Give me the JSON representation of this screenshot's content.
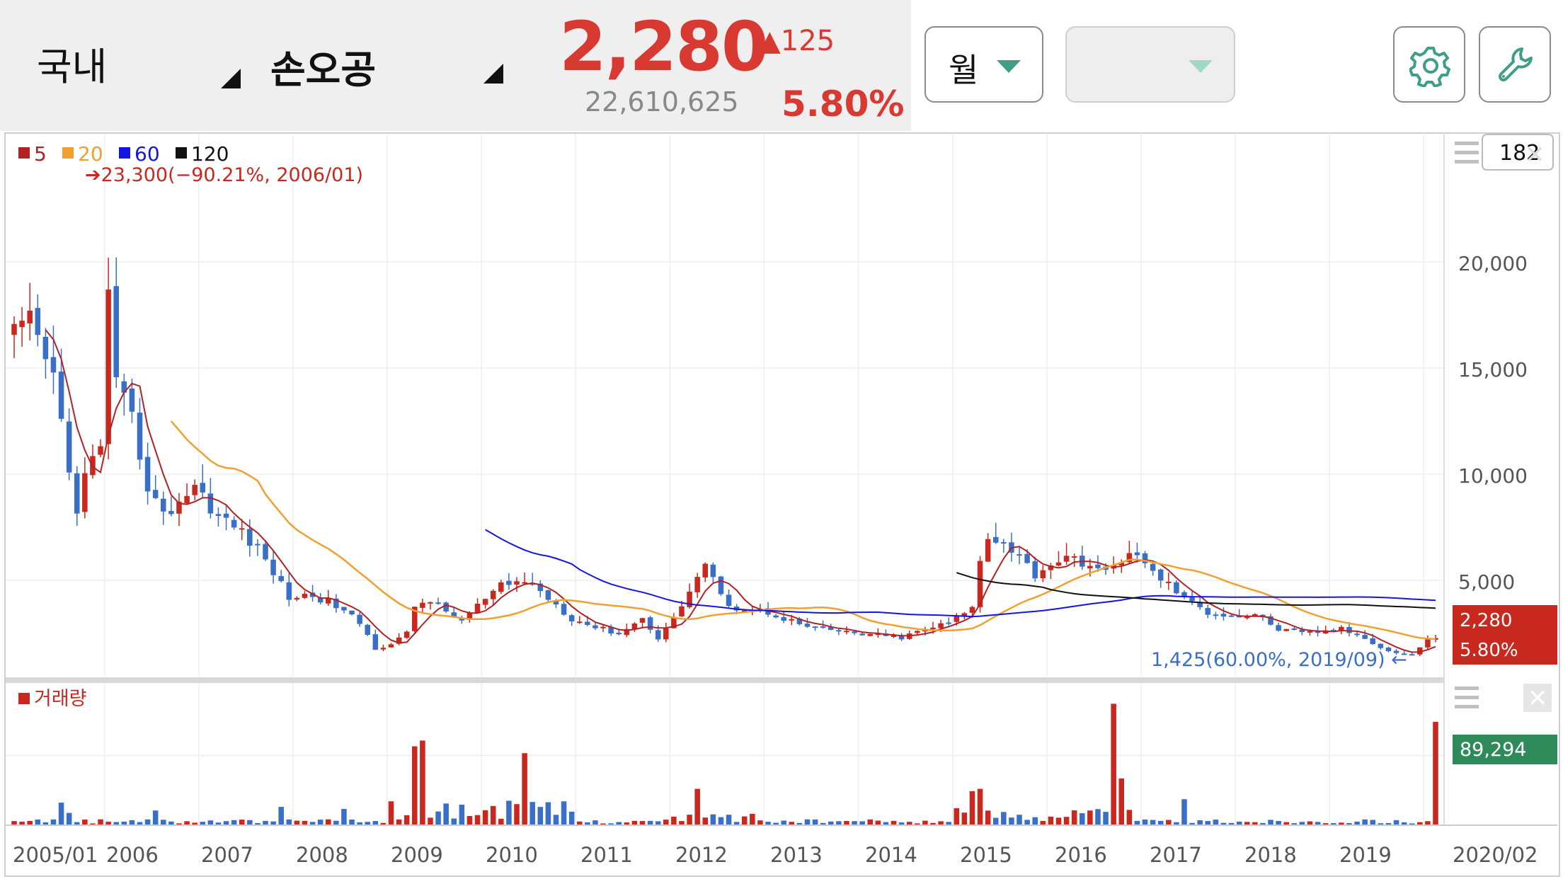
{
  "header": {
    "market_label": "국내",
    "stock_name": "손오공",
    "price": "2,280",
    "change": "▲125",
    "volume_total": "22,610,625",
    "change_pct": "5.80%",
    "period_label": "월",
    "colors": {
      "up": "#d83a32",
      "down": "#3a6fc8",
      "accent": "#3e9e86"
    },
    "icons": [
      "settings-gear-icon",
      "wrench-icon"
    ]
  },
  "chart_data": {
    "type": "candlestick",
    "interval": "monthly",
    "start": "2005/01",
    "end": "2020/02",
    "legend": [
      {
        "label": "5",
        "color": "#b22222"
      },
      {
        "label": "20",
        "color": "#f0a030"
      },
      {
        "label": "60",
        "color": "#1414e6"
      },
      {
        "label": "120",
        "color": "#111111"
      }
    ],
    "range_box_value": "182",
    "x_tick_labels": [
      "2005/01",
      "2006",
      "2007",
      "2008",
      "2009",
      "2010",
      "2011",
      "2012",
      "2013",
      "2014",
      "2015",
      "2016",
      "2017",
      "2018",
      "2019",
      "2020/02"
    ],
    "y_ticks": [
      5000,
      10000,
      15000,
      20000
    ],
    "y_tick_labels": [
      "5,000",
      "10,000",
      "15,000",
      "20,000"
    ],
    "ylim": [
      500,
      26000
    ],
    "grid": true,
    "max_annotation": "➔23,300(−90.21%, 2006/01)",
    "min_annotation": "1,425(60.00%, 2019/09)  ←",
    "last_price_tag": [
      "2,280",
      "5.80%"
    ],
    "close_anchors": [
      [
        "2005-01",
        16500
      ],
      [
        "2005-03",
        17000
      ],
      [
        "2005-06",
        14500
      ],
      [
        "2005-08",
        10500
      ],
      [
        "2005-09",
        8000
      ],
      [
        "2005-10",
        9800
      ],
      [
        "2005-12",
        11500
      ],
      [
        "2006-01",
        18300
      ],
      [
        "2006-02",
        14000
      ],
      [
        "2006-04",
        12500
      ],
      [
        "2006-06",
        9500
      ],
      [
        "2006-08",
        8000
      ],
      [
        "2006-12",
        9500
      ],
      [
        "2007-03",
        8000
      ],
      [
        "2007-06",
        7300
      ],
      [
        "2007-09",
        6000
      ],
      [
        "2007-12",
        4200
      ],
      [
        "2008-03",
        4300
      ],
      [
        "2008-06",
        3800
      ],
      [
        "2008-09",
        3000
      ],
      [
        "2008-11",
        1800
      ],
      [
        "2009-01",
        2000
      ],
      [
        "2009-03",
        2500
      ],
      [
        "2009-04",
        3800
      ],
      [
        "2009-06",
        4100
      ],
      [
        "2009-08",
        3500
      ],
      [
        "2009-10",
        3100
      ],
      [
        "2009-12",
        3800
      ],
      [
        "2010-03",
        4700
      ],
      [
        "2010-06",
        5000
      ],
      [
        "2010-09",
        4200
      ],
      [
        "2010-12",
        3200
      ],
      [
        "2011-03",
        2800
      ],
      [
        "2011-06",
        2500
      ],
      [
        "2011-09",
        3200
      ],
      [
        "2011-11",
        2300
      ],
      [
        "2012-01",
        3200
      ],
      [
        "2012-03",
        4500
      ],
      [
        "2012-05",
        5800
      ],
      [
        "2012-07",
        4200
      ],
      [
        "2012-09",
        3700
      ],
      [
        "2013-01",
        3500
      ],
      [
        "2013-06",
        2800
      ],
      [
        "2013-12",
        2500
      ],
      [
        "2014-06",
        2300
      ],
      [
        "2014-09",
        2700
      ],
      [
        "2014-12",
        3000
      ],
      [
        "2015-03",
        3700
      ],
      [
        "2015-04",
        6000
      ],
      [
        "2015-05",
        7200
      ],
      [
        "2015-08",
        6500
      ],
      [
        "2015-11",
        5300
      ],
      [
        "2016-02",
        6000
      ],
      [
        "2016-05",
        5900
      ],
      [
        "2016-08",
        5300
      ],
      [
        "2016-11",
        6400
      ],
      [
        "2017-01",
        5700
      ],
      [
        "2017-04",
        4800
      ],
      [
        "2017-07",
        3900
      ],
      [
        "2017-09",
        3500
      ],
      [
        "2018-01",
        3300
      ],
      [
        "2018-03",
        3400
      ],
      [
        "2018-06",
        2700
      ],
      [
        "2018-09",
        2500
      ],
      [
        "2018-12",
        2600
      ],
      [
        "2019-02",
        2700
      ],
      [
        "2019-05",
        2300
      ],
      [
        "2019-08",
        1650
      ],
      [
        "2019-11",
        1500
      ],
      [
        "2020-01",
        2155
      ],
      [
        "2020-02",
        2280
      ]
    ],
    "ma20_first_month": "2006-09",
    "ma60_first_month": "2010-01",
    "ma120_first_month": "2015-01",
    "volume": {
      "label": "거래량",
      "last_value_label": "89,294",
      "spikes": [
        [
          "2009-04",
          68000
        ],
        [
          "2009-05",
          73000
        ],
        [
          "2010-06",
          62000
        ],
        [
          "2016-09",
          105000
        ],
        [
          "2016-10",
          40000
        ],
        [
          "2017-06",
          22000
        ],
        [
          "2015-03",
          29000
        ],
        [
          "2015-04",
          31000
        ],
        [
          "2012-04",
          31000
        ],
        [
          "2020-02",
          89294
        ]
      ],
      "ylim": [
        0,
        120000
      ]
    }
  }
}
